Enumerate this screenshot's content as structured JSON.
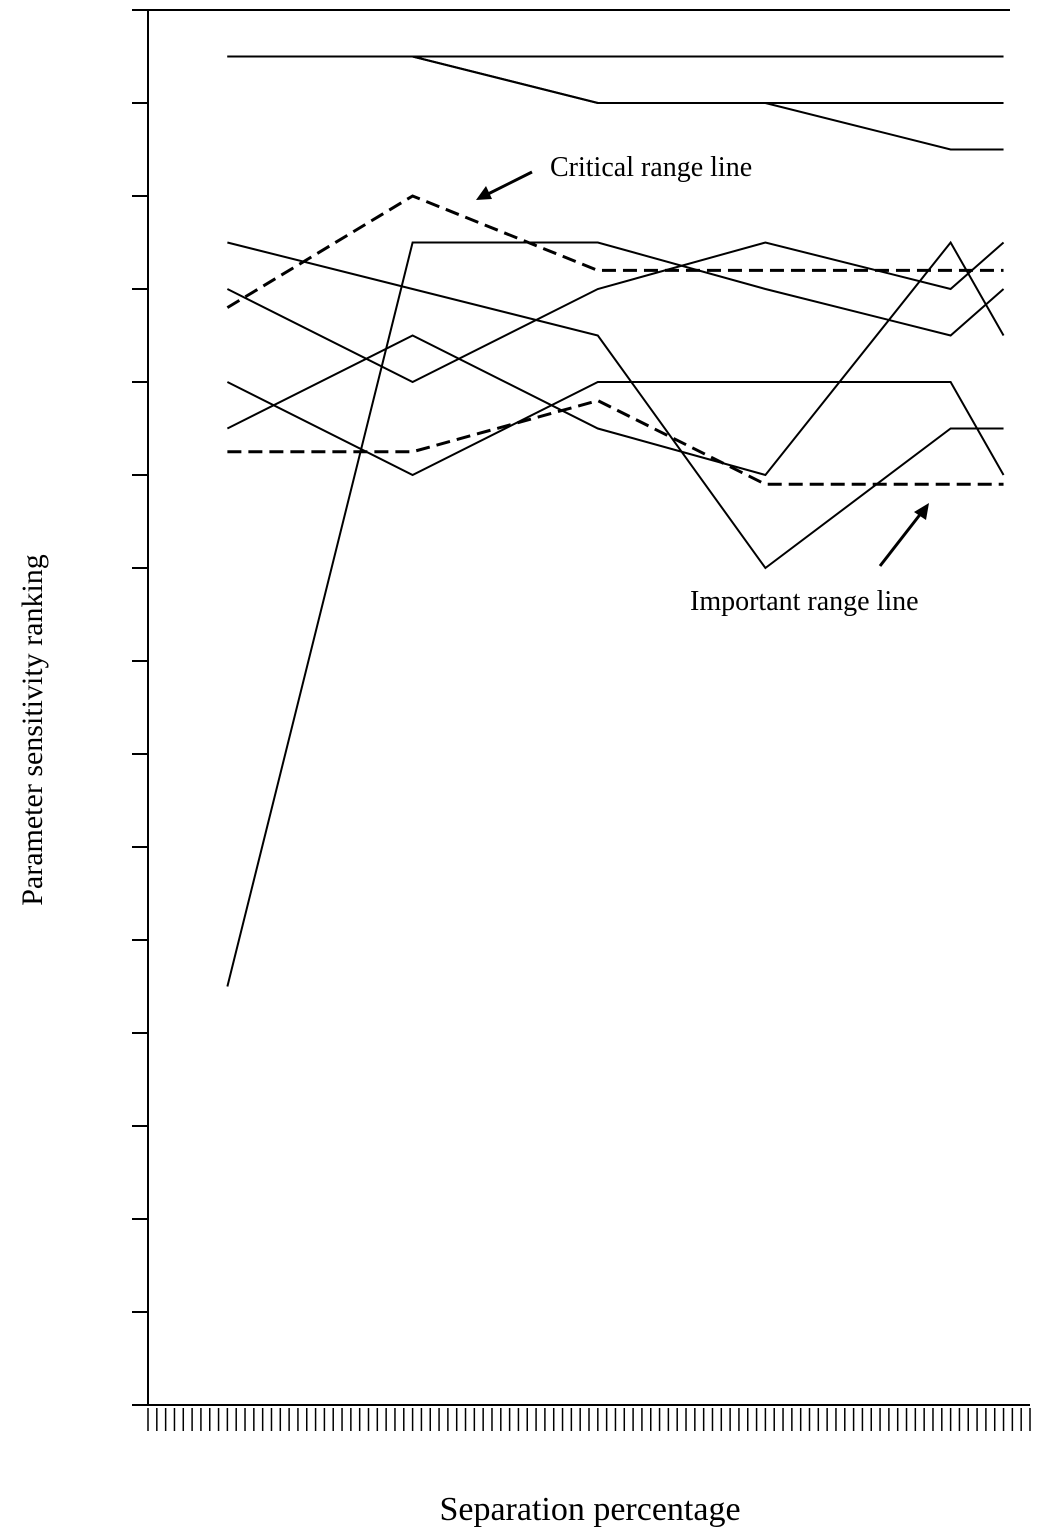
{
  "chart_data": {
    "type": "line",
    "y_label": "Parameter sensitivity ranking",
    "x_label": "Separation percentage",
    "annotations": [
      "Critical range line",
      "Important range line"
    ],
    "x": [
      9,
      30,
      51,
      70,
      91,
      97
    ],
    "xlim": [
      0,
      100
    ],
    "xticks": [
      0,
      1,
      2,
      3,
      4,
      5,
      6,
      7,
      8,
      9,
      10,
      11,
      12,
      13,
      14,
      15,
      16,
      17,
      18,
      19,
      20,
      21,
      22,
      23,
      24,
      25,
      26,
      27,
      28,
      29,
      30,
      31,
      32,
      33,
      34,
      35,
      36,
      37,
      38,
      39,
      40,
      41,
      42,
      43,
      44,
      45,
      46,
      47,
      48,
      49,
      50,
      51,
      52,
      53,
      54,
      55,
      56,
      57,
      58,
      59,
      60,
      61,
      62,
      63,
      64,
      65,
      66,
      67,
      68,
      69,
      70,
      71,
      72,
      73,
      74,
      75,
      76,
      77,
      78,
      79,
      80,
      81,
      82,
      83,
      84,
      85,
      86,
      87,
      88,
      89,
      90,
      91,
      92,
      93,
      94,
      95,
      96,
      97,
      98,
      99,
      100
    ],
    "ylim": [
      0,
      15
    ],
    "yticks": [
      0,
      1,
      2,
      3,
      4,
      5,
      6,
      7,
      8,
      9,
      10,
      11,
      12,
      13,
      14,
      15
    ],
    "series": [
      {
        "color": "#000000",
        "dash": "solid",
        "values": [
          14.5,
          14.5,
          14.5,
          14.5,
          14.5,
          14.5
        ]
      },
      {
        "color": "#000000",
        "dash": "solid",
        "values": [
          14.5,
          14.5,
          14,
          14,
          14,
          14
        ]
      },
      {
        "color": "#000000",
        "dash": "solid",
        "values": [
          14.5,
          14.5,
          14,
          14,
          13.5,
          13.5
        ]
      },
      {
        "color": "#000000",
        "dash": "dashed",
        "values": [
          11.8,
          13,
          12.2,
          12.2,
          12.2,
          12.2
        ]
      },
      {
        "color": "#000000",
        "dash": "solid",
        "values": [
          4.5,
          12.5,
          12.5,
          12,
          11.5,
          12
        ]
      },
      {
        "color": "#000000",
        "dash": "solid",
        "values": [
          12.5,
          12,
          11.5,
          9,
          10.5,
          10.5
        ]
      },
      {
        "color": "#000000",
        "dash": "solid",
        "values": [
          12,
          11,
          12,
          12.5,
          12,
          12.5
        ]
      },
      {
        "color": "#000000",
        "dash": "solid",
        "values": [
          10.5,
          11.5,
          10.5,
          10,
          12.5,
          11.5
        ]
      },
      {
        "color": "#000000",
        "dash": "solid",
        "values": [
          11,
          10,
          11,
          11,
          11,
          10
        ]
      },
      {
        "color": "#000000",
        "dash": "dashed",
        "values": [
          10.25,
          10.25,
          10.8,
          9.9,
          9.9,
          9.9
        ]
      }
    ]
  }
}
